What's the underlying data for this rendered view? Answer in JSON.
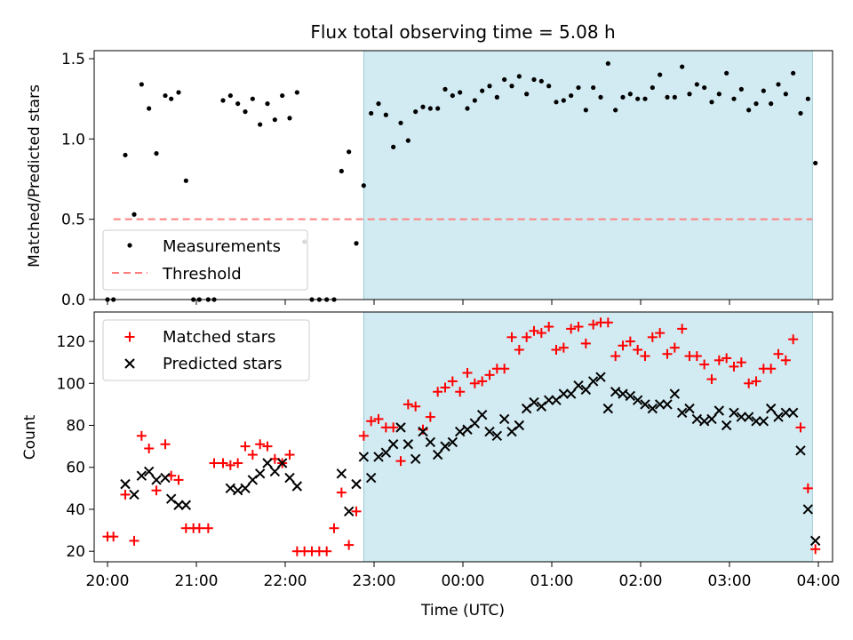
{
  "chart_data": [
    {
      "type": "scatter",
      "title": "Flux total observing time = 5.08 h",
      "ylabel": "Matched/Predicted stars",
      "xlabel": "",
      "xlim": [
        "20:00",
        "04:00"
      ],
      "ylim": [
        0,
        1.55
      ],
      "yticks": [
        "0.0",
        "0.5",
        "1.0",
        "1.5"
      ],
      "grid": false,
      "legend_position": "lower-left",
      "shaded_interval": {
        "start": "22:53",
        "end": "03:56",
        "color": "#add8e6"
      },
      "threshold": {
        "name": "Threshold",
        "value": 0.5,
        "from": "20:04",
        "to": "03:56",
        "color": "#ff7f7f"
      },
      "series": [
        {
          "name": "Measurements",
          "color": "#000000",
          "marker": "dot",
          "x": [
            "20:00",
            "20:04",
            "20:12",
            "20:18",
            "20:23",
            "20:28",
            "20:33",
            "20:39",
            "20:43",
            "20:48",
            "20:53",
            "20:58",
            "21:02",
            "21:08",
            "21:12",
            "21:18",
            "21:23",
            "21:28",
            "21:33",
            "21:38",
            "21:43",
            "21:48",
            "21:53",
            "21:58",
            "22:03",
            "22:08",
            "22:13",
            "22:18",
            "22:23",
            "22:28",
            "22:33",
            "22:38",
            "22:43",
            "22:48",
            "22:53",
            "22:58",
            "23:03",
            "23:08",
            "23:13",
            "23:18",
            "23:23",
            "23:28",
            "23:33",
            "23:38",
            "23:43",
            "23:48",
            "23:53",
            "23:58",
            "00:03",
            "00:08",
            "00:13",
            "00:18",
            "00:23",
            "00:28",
            "00:33",
            "00:38",
            "00:43",
            "00:48",
            "00:53",
            "00:58",
            "01:03",
            "01:08",
            "01:13",
            "01:18",
            "01:23",
            "01:28",
            "01:33",
            "01:38",
            "01:43",
            "01:48",
            "01:53",
            "01:58",
            "02:03",
            "02:08",
            "02:13",
            "02:18",
            "02:23",
            "02:28",
            "02:33",
            "02:38",
            "02:43",
            "02:48",
            "02:53",
            "02:58",
            "03:03",
            "03:08",
            "03:13",
            "03:18",
            "03:23",
            "03:28",
            "03:33",
            "03:38",
            "03:43",
            "03:48",
            "03:53",
            "03:58"
          ],
          "y": [
            0.0,
            0.0,
            0.9,
            0.53,
            1.34,
            1.19,
            0.91,
            1.27,
            1.25,
            1.29,
            0.74,
            0.0,
            0.0,
            0.0,
            0.0,
            1.24,
            1.27,
            1.22,
            1.17,
            1.25,
            1.09,
            1.22,
            1.12,
            1.27,
            1.13,
            1.29,
            0.36,
            0.0,
            0.0,
            0.0,
            0.0,
            0.8,
            0.92,
            0.35,
            0.71,
            1.16,
            1.22,
            1.15,
            0.95,
            1.1,
            0.99,
            1.17,
            1.2,
            1.19,
            1.19,
            1.31,
            1.27,
            1.29,
            1.19,
            1.24,
            1.3,
            1.33,
            1.26,
            1.37,
            1.33,
            1.39,
            1.28,
            1.37,
            1.36,
            1.33,
            1.23,
            1.24,
            1.27,
            1.32,
            1.18,
            1.32,
            1.26,
            1.47,
            1.18,
            1.26,
            1.28,
            1.25,
            1.25,
            1.32,
            1.4,
            1.26,
            1.26,
            1.45,
            1.28,
            1.34,
            1.32,
            1.23,
            1.28,
            1.41,
            1.25,
            1.31,
            1.18,
            1.22,
            1.3,
            1.22,
            1.34,
            1.28,
            1.41,
            1.16,
            1.25,
            0.85
          ]
        }
      ]
    },
    {
      "type": "scatter",
      "title": "",
      "xlabel": "Time (UTC)",
      "ylabel": "Count",
      "xlim": [
        "20:00",
        "04:00"
      ],
      "xticks": [
        "20:00",
        "21:00",
        "22:00",
        "23:00",
        "00:00",
        "01:00",
        "02:00",
        "03:00",
        "04:00"
      ],
      "ylim": [
        15,
        134
      ],
      "yticks": [
        "20",
        "40",
        "60",
        "80",
        "100",
        "120"
      ],
      "grid": false,
      "legend_position": "top-left",
      "shaded_interval": {
        "start": "22:53",
        "end": "03:56",
        "color": "#add8e6"
      },
      "series": [
        {
          "name": "Matched stars",
          "color": "#ff0000",
          "marker": "plus",
          "x": [
            "20:00",
            "20:04",
            "20:12",
            "20:18",
            "20:23",
            "20:28",
            "20:33",
            "20:39",
            "20:43",
            "20:48",
            "20:53",
            "20:58",
            "21:02",
            "21:08",
            "21:12",
            "21:18",
            "21:23",
            "21:28",
            "21:33",
            "21:38",
            "21:43",
            "21:48",
            "21:53",
            "21:58",
            "22:03",
            "22:08",
            "22:13",
            "22:18",
            "22:23",
            "22:28",
            "22:33",
            "22:38",
            "22:43",
            "22:48",
            "22:53",
            "22:58",
            "23:03",
            "23:08",
            "23:13",
            "23:18",
            "23:23",
            "23:28",
            "23:33",
            "23:38",
            "23:43",
            "23:48",
            "23:53",
            "23:58",
            "00:03",
            "00:08",
            "00:13",
            "00:18",
            "00:23",
            "00:28",
            "00:33",
            "00:38",
            "00:43",
            "00:48",
            "00:53",
            "00:58",
            "01:03",
            "01:08",
            "01:13",
            "01:18",
            "01:23",
            "01:28",
            "01:33",
            "01:38",
            "01:43",
            "01:48",
            "01:53",
            "01:58",
            "02:03",
            "02:08",
            "02:13",
            "02:18",
            "02:23",
            "02:28",
            "02:33",
            "02:38",
            "02:43",
            "02:48",
            "02:53",
            "02:58",
            "03:03",
            "03:08",
            "03:13",
            "03:18",
            "03:23",
            "03:28",
            "03:33",
            "03:38",
            "03:43",
            "03:48",
            "03:53",
            "03:58"
          ],
          "y": [
            27,
            27,
            47,
            25,
            75,
            69,
            49,
            71,
            56,
            54,
            31,
            31,
            31,
            31,
            62,
            62,
            61,
            62,
            70,
            66,
            71,
            70,
            64,
            62,
            66,
            20,
            20,
            20,
            20,
            20,
            31,
            48,
            23,
            39,
            75,
            82,
            83,
            79,
            79,
            63,
            90,
            89,
            78,
            84,
            96,
            98,
            101,
            96,
            105,
            100,
            101,
            104,
            107,
            107,
            122,
            116,
            122,
            125,
            124,
            127,
            116,
            117,
            126,
            127,
            119,
            128,
            129,
            129,
            113,
            118,
            120,
            116,
            113,
            122,
            124,
            114,
            117,
            126,
            113,
            113,
            109,
            102,
            111,
            112,
            108,
            110,
            100,
            101,
            107,
            107,
            114,
            111,
            121,
            79,
            50,
            21
          ]
        },
        {
          "name": "Predicted stars",
          "color": "#000000",
          "marker": "x",
          "x": [
            "20:12",
            "20:18",
            "20:23",
            "20:28",
            "20:33",
            "20:39",
            "20:43",
            "20:48",
            "20:53",
            "21:23",
            "21:28",
            "21:33",
            "21:38",
            "21:43",
            "21:48",
            "21:53",
            "21:58",
            "22:03",
            "22:08",
            "22:38",
            "22:43",
            "22:48",
            "22:53",
            "22:58",
            "23:03",
            "23:08",
            "23:13",
            "23:18",
            "23:23",
            "23:28",
            "23:33",
            "23:38",
            "23:43",
            "23:48",
            "23:53",
            "23:58",
            "00:03",
            "00:08",
            "00:13",
            "00:18",
            "00:23",
            "00:28",
            "00:33",
            "00:38",
            "00:43",
            "00:48",
            "00:53",
            "00:58",
            "01:03",
            "01:08",
            "01:13",
            "01:18",
            "01:23",
            "01:28",
            "01:33",
            "01:38",
            "01:43",
            "01:48",
            "01:53",
            "01:58",
            "02:03",
            "02:08",
            "02:13",
            "02:18",
            "02:23",
            "02:28",
            "02:33",
            "02:38",
            "02:43",
            "02:48",
            "02:53",
            "02:58",
            "03:03",
            "03:08",
            "03:13",
            "03:18",
            "03:23",
            "03:28",
            "03:33",
            "03:38",
            "03:43",
            "03:48",
            "03:53",
            "03:58"
          ],
          "y": [
            52,
            47,
            56,
            58,
            54,
            55,
            45,
            42,
            42,
            50,
            49,
            50,
            54,
            57,
            62,
            58,
            62,
            55,
            51,
            57,
            39,
            52,
            65,
            55,
            65,
            67,
            71,
            79,
            71,
            64,
            77,
            72,
            66,
            70,
            72,
            77,
            78,
            81,
            85,
            77,
            75,
            83,
            77,
            80,
            88,
            91,
            89,
            92,
            92,
            95,
            95,
            99,
            97,
            101,
            103,
            88,
            96,
            95,
            94,
            92,
            90,
            88,
            90,
            90,
            95,
            86,
            88,
            83,
            82,
            83,
            87,
            80,
            86,
            84,
            84,
            82,
            82,
            88,
            84,
            86,
            86,
            68,
            40,
            25
          ]
        }
      ]
    }
  ]
}
